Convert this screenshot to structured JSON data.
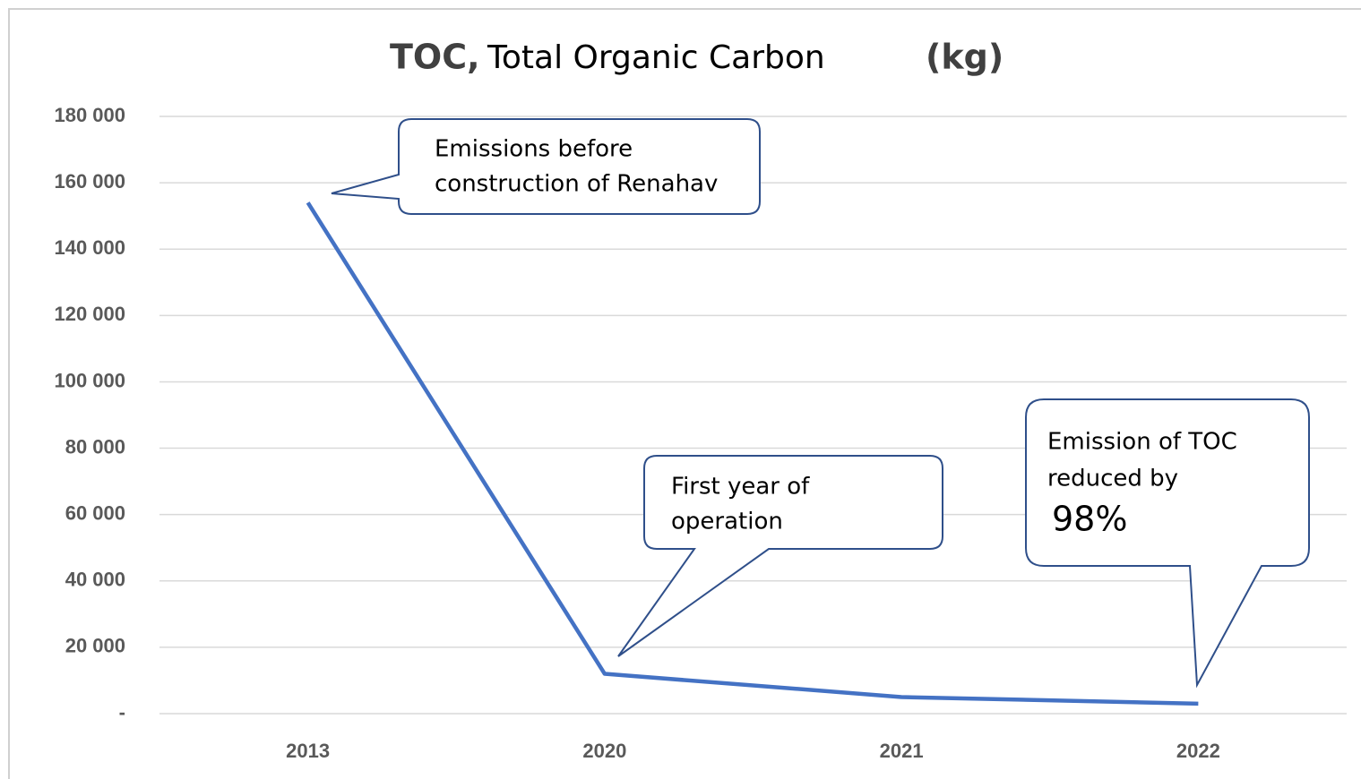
{
  "chart_data": {
    "type": "line",
    "title": "TOC,",
    "subtitle": "Total Organic Carbon",
    "unit": "(kg)",
    "categories": [
      "2013",
      "2020",
      "2021",
      "2022"
    ],
    "series": [
      {
        "color": "#4472c4",
        "values": [
          154000,
          12000,
          5000,
          3000
        ]
      }
    ],
    "ylim": [
      0,
      180000
    ],
    "yticks": [
      {
        "value": 0,
        "label": "-"
      },
      {
        "value": 20000,
        "label": "20 000"
      },
      {
        "value": 40000,
        "label": "40 000"
      },
      {
        "value": 60000,
        "label": "60 000"
      },
      {
        "value": 80000,
        "label": "80 000"
      },
      {
        "value": 100000,
        "label": "100 000"
      },
      {
        "value": 120000,
        "label": "120 000"
      },
      {
        "value": 140000,
        "label": "140 000"
      },
      {
        "value": 160000,
        "label": "160 000"
      },
      {
        "value": 180000,
        "label": "180 000"
      }
    ],
    "grid": true,
    "annotations": [
      {
        "lines": [
          "Emissions before",
          "construction of Renahav"
        ]
      },
      {
        "lines": [
          "First year of",
          "operation"
        ]
      },
      {
        "lines": [
          "Emission of TOC",
          "reduced by",
          "98%"
        ]
      }
    ]
  }
}
